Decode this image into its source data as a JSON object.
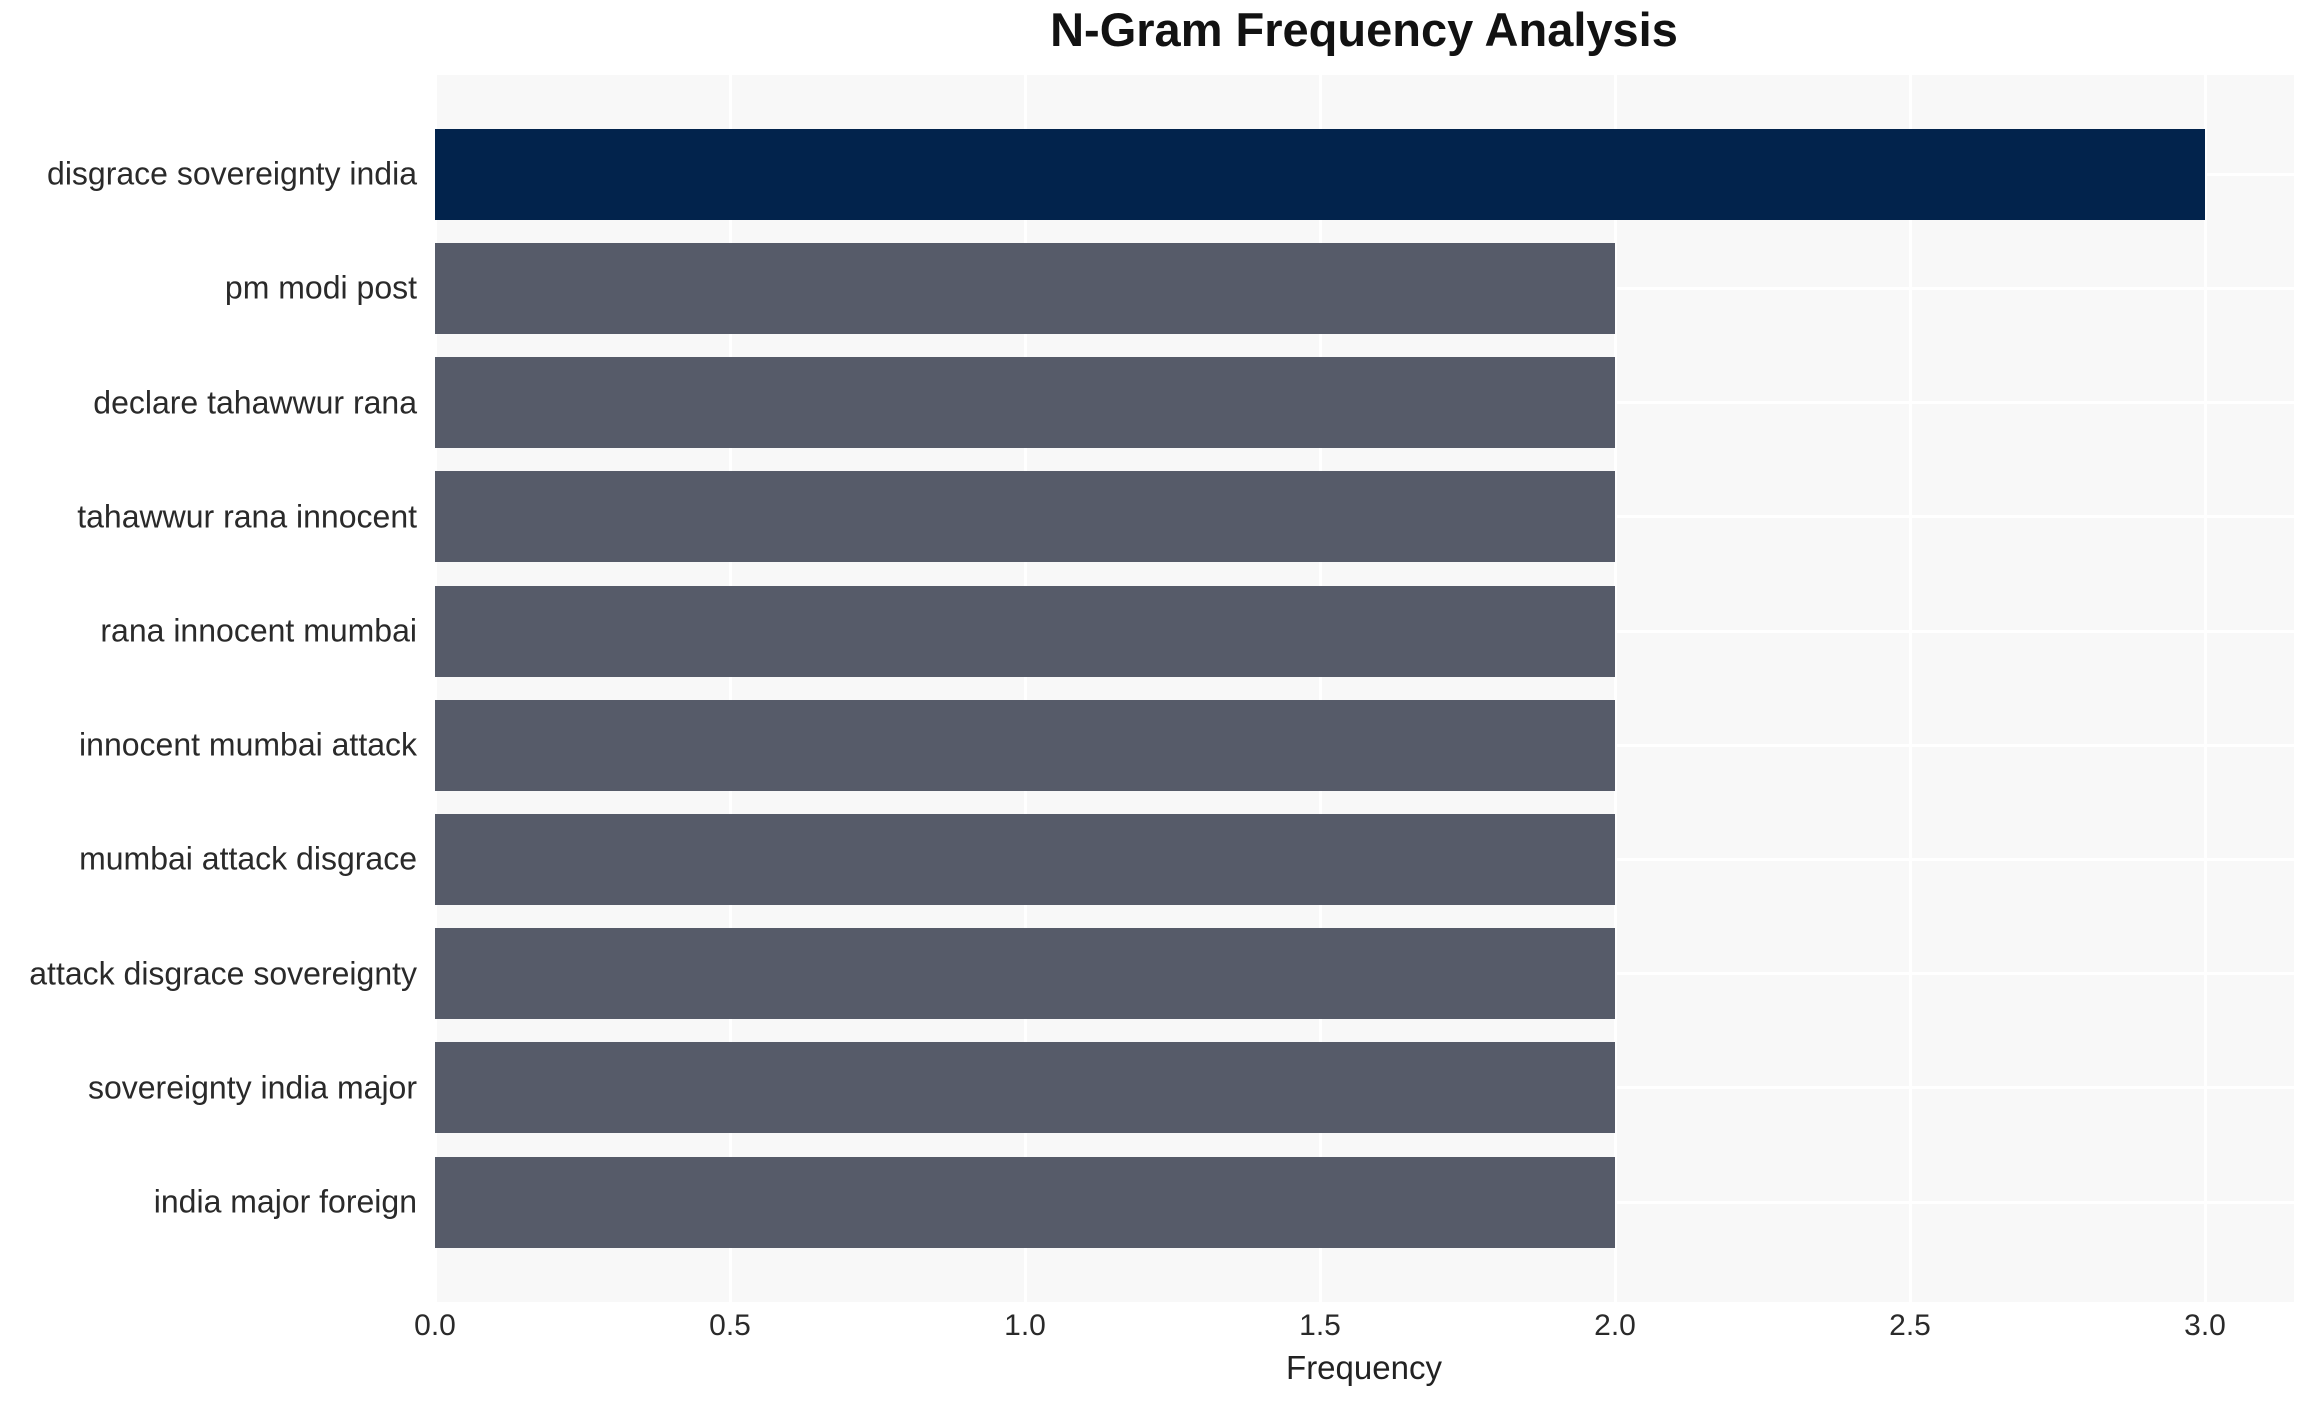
{
  "chart_data": {
    "type": "bar",
    "orientation": "horizontal",
    "title": "N-Gram Frequency Analysis",
    "xlabel": "Frequency",
    "ylabel": "",
    "categories": [
      "disgrace sovereignty india",
      "pm modi post",
      "declare tahawwur rana",
      "tahawwur rana innocent",
      "rana innocent mumbai",
      "innocent mumbai attack",
      "mumbai attack disgrace",
      "attack disgrace sovereignty",
      "sovereignty india major",
      "india major foreign"
    ],
    "values": [
      3,
      2,
      2,
      2,
      2,
      2,
      2,
      2,
      2,
      2
    ],
    "xlim": [
      0,
      3.15
    ],
    "xticks": [
      0,
      0.5,
      1,
      1.5,
      2,
      2.5,
      3
    ],
    "xtick_labels": [
      "0.0",
      "0.5",
      "1.0",
      "1.5",
      "2.0",
      "2.5",
      "3.0"
    ],
    "grid": true,
    "legend": false,
    "bar_colors": [
      "#02234C",
      "#565B69",
      "#565B69",
      "#565B69",
      "#565B69",
      "#565B69",
      "#565B69",
      "#565B69",
      "#565B69",
      "#565B69"
    ]
  },
  "colors": {
    "bar_highlight": "#02234C",
    "bar_default": "#565B69",
    "plot_background": "#F8F8F8",
    "grid_line": "#FFFFFF",
    "tick_text": "#2A2A2A",
    "title_text": "#121212"
  }
}
